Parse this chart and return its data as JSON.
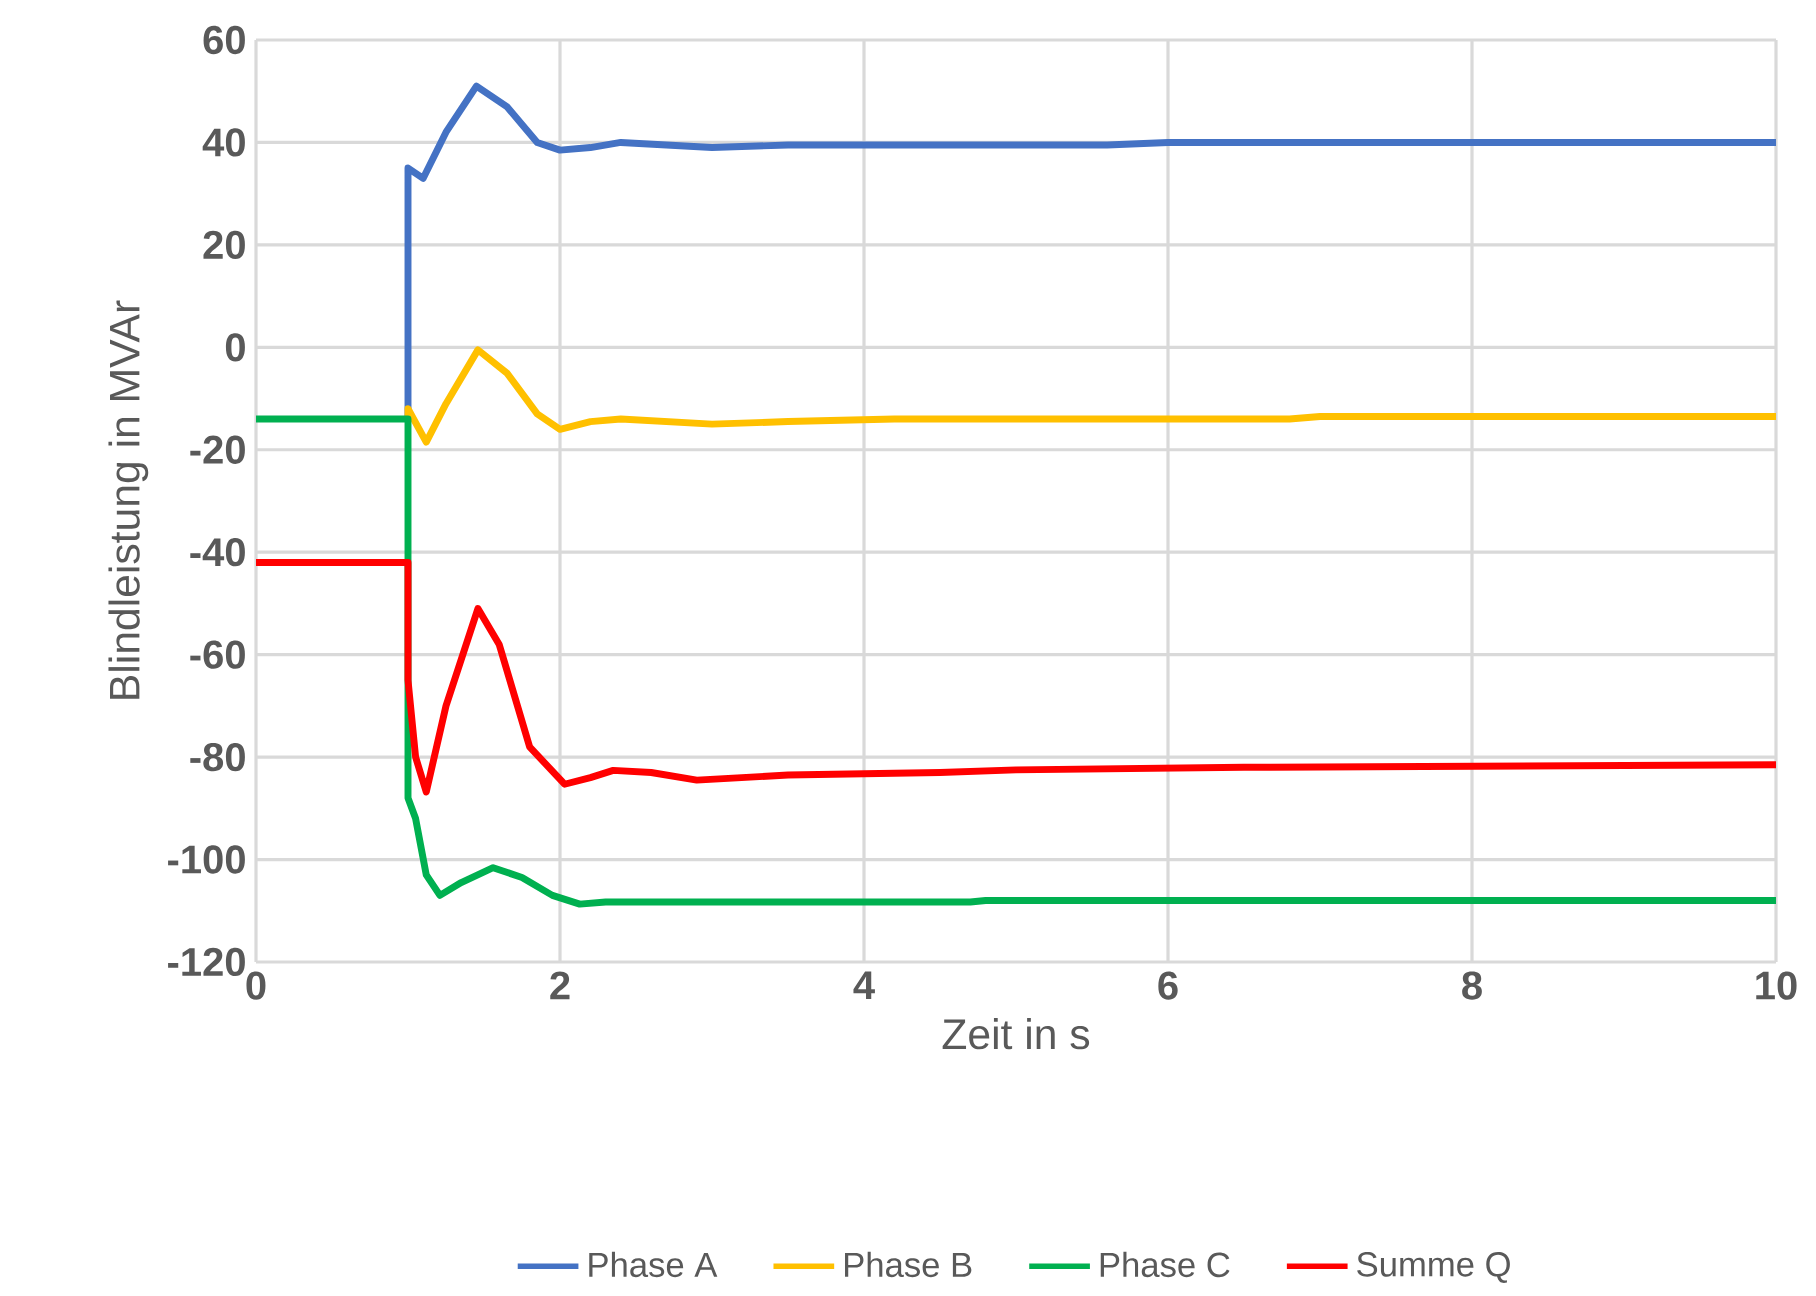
{
  "chart_data": {
    "type": "line",
    "xlabel": "Zeit in s",
    "ylabel": "Blindleistung in MVAr",
    "xlim": [
      0,
      10
    ],
    "ylim": [
      -120,
      60
    ],
    "xticks": [
      0,
      2,
      4,
      6,
      8,
      10
    ],
    "yticks": [
      -120,
      -100,
      -80,
      -60,
      -40,
      -20,
      0,
      20,
      40,
      60
    ],
    "grid": true,
    "legend": "bottom",
    "marker": "none",
    "line_style": "solid",
    "series": [
      {
        "name": "Phase A",
        "color": "#4472c4",
        "x": [
          1,
          1,
          1.1,
          1.25,
          1.45,
          1.65,
          1.85,
          2.0,
          2.2,
          2.4,
          2.7,
          3.0,
          3.5,
          4,
          5.6,
          6,
          8,
          10
        ],
        "values": [
          -14,
          35,
          33,
          42,
          51,
          47,
          40,
          38.5,
          39,
          40,
          39.5,
          39,
          39.5,
          39.5,
          39.5,
          40,
          40,
          40
        ]
      },
      {
        "name": "Phase B",
        "color": "#ffc000",
        "x": [
          1,
          1,
          1.12,
          1.25,
          1.46,
          1.65,
          1.85,
          2.0,
          2.2,
          2.4,
          2.7,
          3.0,
          3.5,
          4.2,
          6.8,
          7,
          10
        ],
        "values": [
          -14,
          -12,
          -18.5,
          -11,
          -0.5,
          -5,
          -13,
          -16,
          -14.5,
          -14,
          -14.5,
          -15,
          -14.5,
          -14,
          -14,
          -13.5,
          -13.5
        ]
      },
      {
        "name": "Phase C",
        "color": "#00b050",
        "x": [
          0,
          1,
          1,
          1.05,
          1.12,
          1.21,
          1.35,
          1.56,
          1.75,
          1.95,
          2.13,
          2.3,
          3,
          4.7,
          4.8,
          10
        ],
        "values": [
          -14,
          -14,
          -88,
          -92,
          -103,
          -107,
          -104.5,
          -101.6,
          -103.5,
          -107,
          -108.7,
          -108.3,
          -108.3,
          -108.3,
          -108,
          -108
        ]
      },
      {
        "name": "Summe Q",
        "color": "#ff0000",
        "x": [
          0,
          1,
          1,
          1.05,
          1.12,
          1.25,
          1.46,
          1.6,
          1.8,
          2.03,
          2.2,
          2.35,
          2.6,
          2.9,
          3.5,
          4.5,
          5,
          6.5,
          10
        ],
        "values": [
          -42,
          -42,
          -65,
          -80,
          -86.8,
          -70,
          -51,
          -58,
          -78,
          -85.3,
          -84,
          -82.6,
          -83,
          -84.5,
          -83.5,
          -83,
          -82.5,
          -82,
          -81.5
        ]
      }
    ]
  }
}
